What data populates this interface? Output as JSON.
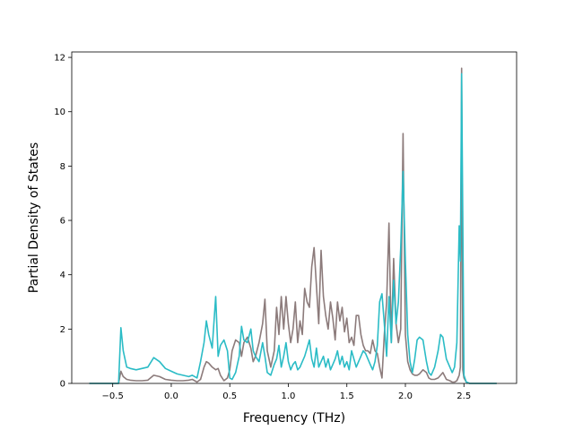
{
  "chart_data": {
    "type": "line",
    "title": "",
    "xlabel": "Frequency (THz)",
    "ylabel": "Partial Density of States",
    "xlim": [
      -0.85,
      2.95
    ],
    "ylim": [
      0,
      12.2
    ],
    "xticks": [
      -0.5,
      0.0,
      0.5,
      1.0,
      1.5,
      2.0,
      2.5
    ],
    "xtick_labels": [
      "−0.5",
      "0.0",
      "0.5",
      "1.0",
      "1.5",
      "2.0",
      "2.5"
    ],
    "yticks": [
      0,
      2,
      4,
      6,
      8,
      10,
      12
    ],
    "ytick_labels": [
      "0",
      "2",
      "4",
      "6",
      "8",
      "10",
      "12"
    ],
    "grid": false,
    "legend": "none",
    "series": [
      {
        "color": "#8c7b7b",
        "x": [
          -0.7,
          -0.45,
          -0.43,
          -0.41,
          -0.38,
          -0.35,
          -0.3,
          -0.25,
          -0.2,
          -0.15,
          -0.1,
          -0.05,
          0.0,
          0.05,
          0.1,
          0.15,
          0.18,
          0.2,
          0.22,
          0.25,
          0.28,
          0.3,
          0.32,
          0.35,
          0.38,
          0.4,
          0.42,
          0.45,
          0.48,
          0.5,
          0.52,
          0.55,
          0.58,
          0.6,
          0.62,
          0.65,
          0.68,
          0.7,
          0.72,
          0.75,
          0.78,
          0.8,
          0.82,
          0.85,
          0.88,
          0.9,
          0.92,
          0.94,
          0.96,
          0.98,
          1.0,
          1.02,
          1.04,
          1.06,
          1.08,
          1.1,
          1.12,
          1.14,
          1.16,
          1.18,
          1.2,
          1.22,
          1.24,
          1.26,
          1.28,
          1.3,
          1.32,
          1.34,
          1.36,
          1.38,
          1.4,
          1.42,
          1.44,
          1.46,
          1.48,
          1.5,
          1.52,
          1.54,
          1.56,
          1.58,
          1.6,
          1.62,
          1.64,
          1.66,
          1.68,
          1.7,
          1.72,
          1.74,
          1.76,
          1.78,
          1.8,
          1.82,
          1.84,
          1.86,
          1.88,
          1.9,
          1.92,
          1.94,
          1.96,
          1.98,
          2.0,
          2.02,
          2.04,
          2.06,
          2.08,
          2.1,
          2.12,
          2.15,
          2.18,
          2.2,
          2.22,
          2.25,
          2.28,
          2.3,
          2.32,
          2.35,
          2.38,
          2.4,
          2.42,
          2.44,
          2.46,
          2.47,
          2.48,
          2.49,
          2.5,
          2.52,
          2.55,
          2.6,
          2.7,
          2.78
        ],
        "y": [
          0,
          0,
          0.45,
          0.25,
          0.15,
          0.12,
          0.1,
          0.1,
          0.12,
          0.3,
          0.25,
          0.15,
          0.12,
          0.1,
          0.1,
          0.12,
          0.15,
          0.1,
          0.05,
          0.15,
          0.6,
          0.8,
          0.75,
          0.6,
          0.5,
          0.55,
          0.3,
          0.1,
          0.2,
          0.5,
          1.2,
          1.6,
          1.5,
          1.0,
          1.5,
          1.7,
          1.3,
          0.8,
          1.0,
          1.5,
          2.2,
          3.1,
          1.2,
          0.6,
          1.2,
          2.8,
          1.8,
          3.2,
          2.0,
          3.2,
          2.2,
          1.5,
          2.0,
          3.0,
          1.5,
          2.3,
          1.8,
          3.5,
          3.0,
          2.8,
          4.3,
          5.0,
          3.6,
          2.2,
          4.9,
          3.2,
          2.5,
          2.0,
          3.0,
          2.4,
          1.6,
          3.0,
          2.3,
          2.8,
          1.9,
          2.4,
          1.5,
          1.7,
          1.4,
          2.5,
          2.5,
          1.8,
          1.4,
          1.2,
          1.2,
          1.1,
          1.6,
          1.2,
          1.1,
          0.6,
          0.2,
          1.8,
          3.0,
          5.9,
          1.5,
          4.6,
          2.2,
          1.5,
          2.0,
          9.2,
          1.8,
          0.8,
          0.5,
          0.35,
          0.3,
          0.3,
          0.35,
          0.5,
          0.4,
          0.2,
          0.15,
          0.15,
          0.2,
          0.3,
          0.4,
          0.15,
          0.1,
          0.05,
          0.05,
          0.1,
          0.3,
          0.6,
          11.6,
          0.5,
          0.2,
          0.05,
          0,
          0,
          0,
          0
        ]
      },
      {
        "color": "#2bbcc6",
        "x": [
          -0.7,
          -0.45,
          -0.43,
          -0.41,
          -0.38,
          -0.35,
          -0.3,
          -0.25,
          -0.2,
          -0.15,
          -0.1,
          -0.05,
          0.0,
          0.05,
          0.1,
          0.15,
          0.18,
          0.2,
          0.22,
          0.25,
          0.28,
          0.3,
          0.32,
          0.35,
          0.38,
          0.4,
          0.42,
          0.45,
          0.48,
          0.5,
          0.52,
          0.55,
          0.58,
          0.6,
          0.62,
          0.65,
          0.68,
          0.7,
          0.72,
          0.75,
          0.78,
          0.8,
          0.82,
          0.85,
          0.88,
          0.9,
          0.92,
          0.94,
          0.96,
          0.98,
          1.0,
          1.02,
          1.04,
          1.06,
          1.08,
          1.1,
          1.12,
          1.14,
          1.16,
          1.18,
          1.2,
          1.22,
          1.24,
          1.26,
          1.28,
          1.3,
          1.32,
          1.34,
          1.36,
          1.38,
          1.4,
          1.42,
          1.44,
          1.46,
          1.48,
          1.5,
          1.52,
          1.54,
          1.56,
          1.58,
          1.6,
          1.62,
          1.64,
          1.66,
          1.68,
          1.7,
          1.72,
          1.74,
          1.76,
          1.78,
          1.8,
          1.82,
          1.84,
          1.86,
          1.88,
          1.9,
          1.92,
          1.94,
          1.96,
          1.98,
          2.0,
          2.02,
          2.04,
          2.06,
          2.08,
          2.1,
          2.12,
          2.15,
          2.18,
          2.2,
          2.22,
          2.25,
          2.28,
          2.3,
          2.32,
          2.35,
          2.38,
          2.4,
          2.42,
          2.44,
          2.46,
          2.47,
          2.48,
          2.49,
          2.5,
          2.52,
          2.55,
          2.6,
          2.7,
          2.78
        ],
        "y": [
          0,
          0,
          2.05,
          1.2,
          0.6,
          0.55,
          0.5,
          0.55,
          0.6,
          0.95,
          0.8,
          0.55,
          0.45,
          0.35,
          0.3,
          0.25,
          0.3,
          0.25,
          0.2,
          0.8,
          1.5,
          2.3,
          1.8,
          1.3,
          3.2,
          1.0,
          1.4,
          1.6,
          1.2,
          0.2,
          0.15,
          0.4,
          1.0,
          2.1,
          1.6,
          1.5,
          2.0,
          1.2,
          1.0,
          0.8,
          1.5,
          1.0,
          0.4,
          0.3,
          0.7,
          0.9,
          1.4,
          0.6,
          1.0,
          1.5,
          0.8,
          0.5,
          0.7,
          0.8,
          0.5,
          0.6,
          0.8,
          1.0,
          1.3,
          1.6,
          0.9,
          0.6,
          1.3,
          0.6,
          0.8,
          1.0,
          0.6,
          0.9,
          0.5,
          0.7,
          0.9,
          1.2,
          0.7,
          1.0,
          0.6,
          0.8,
          0.5,
          1.2,
          0.9,
          0.6,
          0.8,
          1.0,
          1.2,
          1.1,
          0.9,
          0.7,
          0.5,
          0.8,
          1.4,
          3.0,
          3.3,
          2.2,
          1.0,
          3.2,
          1.5,
          3.8,
          2.2,
          3.0,
          5.0,
          7.8,
          4.5,
          1.8,
          0.8,
          0.4,
          0.9,
          1.6,
          1.7,
          1.6,
          0.8,
          0.4,
          0.3,
          0.6,
          1.2,
          1.8,
          1.7,
          0.9,
          0.6,
          0.4,
          0.6,
          1.5,
          5.8,
          4.5,
          11.4,
          6.0,
          0.3,
          0.05,
          0,
          0,
          0,
          0
        ]
      }
    ]
  }
}
